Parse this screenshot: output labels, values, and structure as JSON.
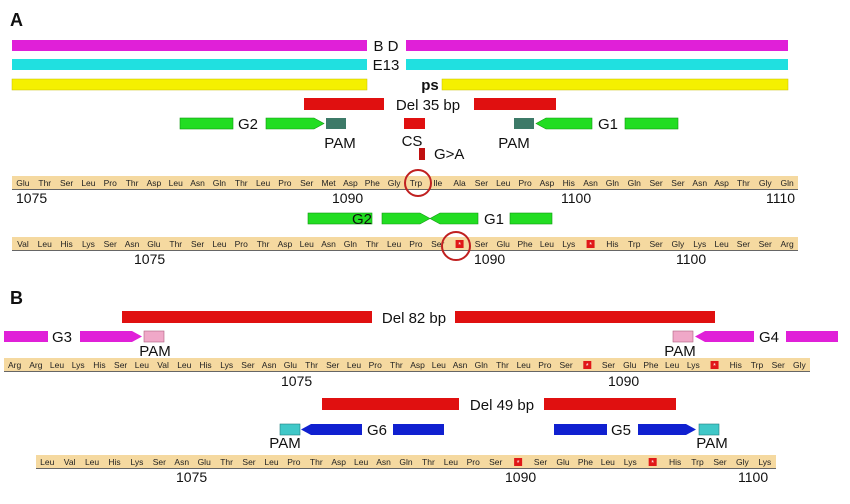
{
  "panel_a": {
    "letter": "A",
    "bars": {
      "bd": "B D",
      "e13": "E13",
      "ps": "ps"
    },
    "deletion": "Del 35 bp",
    "g2": "G2",
    "g1": "G1",
    "pam": "PAM",
    "cs": "CS",
    "mutation": "G>A",
    "seq1": {
      "residues": [
        "Glu",
        "Thr",
        "Ser",
        "Leu",
        "Pro",
        "Thr",
        "Asp",
        "Leu",
        "Asn",
        "Gln",
        "Thr",
        "Leu",
        "Pro",
        "Ser",
        "Met",
        "Asp",
        "Phe",
        "Gly",
        "Trp",
        "Ile",
        "Ala",
        "Ser",
        "Leu",
        "Pro",
        "Asp",
        "His",
        "Asn",
        "Gln",
        "Gln",
        "Ser",
        "Ser",
        "Asn",
        "Asp",
        "Thr",
        "Gly",
        "Gln"
      ],
      "numbers": [
        "1075",
        "1090",
        "1100",
        "1110"
      ]
    },
    "seq2": {
      "residues": [
        "Val",
        "Leu",
        "His",
        "Lys",
        "Ser",
        "Asn",
        "Glu",
        "Thr",
        "Ser",
        "Leu",
        "Pro",
        "Thr",
        "Asp",
        "Leu",
        "Asn",
        "Gln",
        "Thr",
        "Leu",
        "Pro",
        "Ser",
        "*",
        "Ser",
        "Glu",
        "Phe",
        "Leu",
        "Lys",
        "*",
        "His",
        "Trp",
        "Ser",
        "Gly",
        "Lys",
        "Leu",
        "Ser",
        "Ser",
        "Arg"
      ],
      "numbers": [
        "1075",
        "1090",
        "1100"
      ]
    }
  },
  "panel_b": {
    "letter": "B",
    "deletion1": "Del 82 bp",
    "g3": "G3",
    "g4": "G4",
    "pam": "PAM",
    "seq1": {
      "residues": [
        "Arg",
        "Arg",
        "Leu",
        "Lys",
        "His",
        "Ser",
        "Leu",
        "Val",
        "Leu",
        "His",
        "Lys",
        "Ser",
        "Asn",
        "Glu",
        "Thr",
        "Ser",
        "Leu",
        "Pro",
        "Thr",
        "Asp",
        "Leu",
        "Asn",
        "Gln",
        "Thr",
        "Leu",
        "Pro",
        "Ser",
        "*",
        "Ser",
        "Glu",
        "Phe",
        "Leu",
        "Lys",
        "*",
        "His",
        "Trp",
        "Ser",
        "Gly"
      ],
      "numbers": [
        "1075",
        "1090"
      ]
    },
    "deletion2": "Del 49 bp",
    "g6": "G6",
    "g5": "G5",
    "seq2": {
      "residues": [
        "Leu",
        "Val",
        "Leu",
        "His",
        "Lys",
        "Ser",
        "Asn",
        "Glu",
        "Thr",
        "Ser",
        "Leu",
        "Pro",
        "Thr",
        "Asp",
        "Leu",
        "Asn",
        "Gln",
        "Thr",
        "Leu",
        "Pro",
        "Ser",
        "*",
        "Ser",
        "Glu",
        "Phe",
        "Leu",
        "Lys",
        "*",
        "His",
        "Trp",
        "Ser",
        "Gly",
        "Lys"
      ],
      "numbers": [
        "1075",
        "1090",
        "1100"
      ]
    }
  },
  "colors": {
    "magenta": "#e020d8",
    "cyan": "#20e0e0",
    "yellow": "#f5f000",
    "red": "#e01010",
    "green": "#22dd22",
    "pam_dark": "#3d7a68",
    "pink": "#f0a8c8",
    "teal": "#40c8c8",
    "blue": "#1020d0",
    "seq_bg": "#f5d9a0",
    "circle": "#c02020"
  }
}
